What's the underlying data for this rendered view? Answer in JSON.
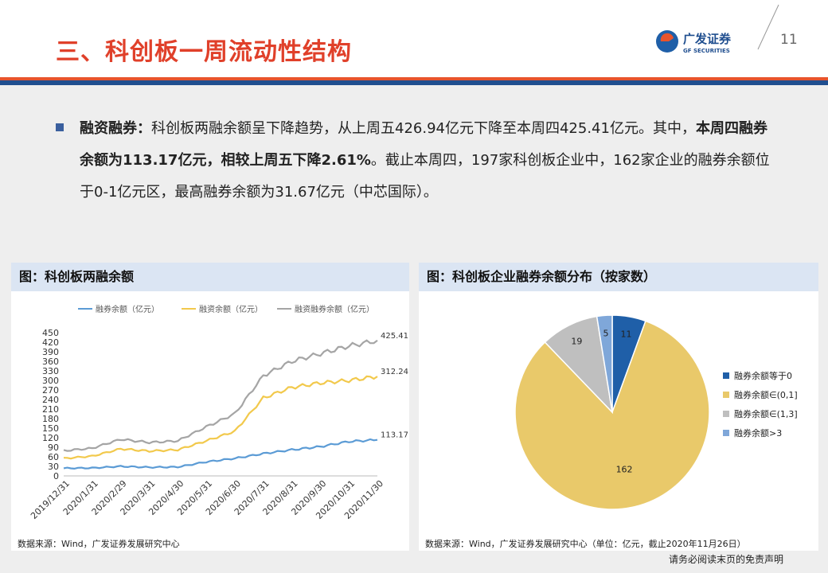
{
  "header": {
    "title": "三、科创板一周流动性结构",
    "page_number": "11",
    "logo_text_cn": "广发证券",
    "logo_text_en": "GF SECURITIES"
  },
  "body": {
    "label": "融资融券：",
    "text1": "科创板两融余额呈下降趋势，从上周五426.94亿元下降至本周四425.41亿元。其中，",
    "bold1": "本周四融券余额为113.17亿元，相较上周五下降2.61%",
    "text2": "。截止本周四，197家科创板企业中，162家企业的融券余额位于0-1亿元区，最高融券余额为31.67亿元（中芯国际）。"
  },
  "left_panel": {
    "heading": "图：科创板两融余额",
    "source": "数据来源：Wind，广发证券发展研究中心"
  },
  "right_panel": {
    "heading": "图：科创板企业融券余额分布（按家数）",
    "source": "数据来源：Wind，广发证券发展研究中心（单位：亿元，截止2020年11月26日）"
  },
  "footer": {
    "note": "请务必阅读末页的免责声明"
  },
  "colors": {
    "series1": "#5b9bd5",
    "series2": "#f2c94c",
    "series3": "#a5a5a5",
    "pie_zero": "#1f5fa8",
    "pie_01": "#e9c96a",
    "pie_13": "#bfbfbf",
    "pie_gt3": "#7fa7d9"
  },
  "chart_data": [
    {
      "type": "line",
      "x_ticks": [
        "2019/12/31",
        "2020/1/31",
        "2020/2/29",
        "2020/3/31",
        "2020/4/30",
        "2020/5/31",
        "2020/6/30",
        "2020/7/31",
        "2020/8/31",
        "2020/9/30",
        "2020/10/31",
        "2020/11/30"
      ],
      "y_ticks": [
        "0",
        "30",
        "60",
        "90",
        "120",
        "150",
        "180",
        "210",
        "240",
        "270",
        "300",
        "330",
        "360",
        "390",
        "420",
        "450"
      ],
      "ylim": [
        0,
        450
      ],
      "series": [
        {
          "name": "融券余额（亿元）",
          "values": [
            24,
            25,
            30,
            27,
            28,
            44,
            55,
            70,
            82,
            92,
            108,
            113.17
          ],
          "end_label": "113.17"
        },
        {
          "name": "融资余额（亿元）",
          "values": [
            55,
            62,
            85,
            78,
            82,
            110,
            140,
            245,
            278,
            292,
            300,
            312.24
          ],
          "end_label": "312.24"
        },
        {
          "name": "融资融券余额（亿元）",
          "values": [
            79,
            87,
            115,
            105,
            110,
            154,
            195,
            315,
            360,
            384,
            408,
            425.41
          ],
          "end_label": "425.41"
        }
      ]
    },
    {
      "type": "pie",
      "labels": [
        "融券余额等于0",
        "融券余额∈(0,1]",
        "融券余额∈(1,3]",
        "融券余额>3"
      ],
      "legend_texts": [
        "融券余额等于0",
        "融券余额∈(0,1]",
        "融券余额∈(1,3]",
        "融券余额>3"
      ],
      "values": [
        11,
        162,
        19,
        5
      ],
      "value_labels": [
        "11",
        "162",
        "19",
        "5"
      ]
    }
  ]
}
